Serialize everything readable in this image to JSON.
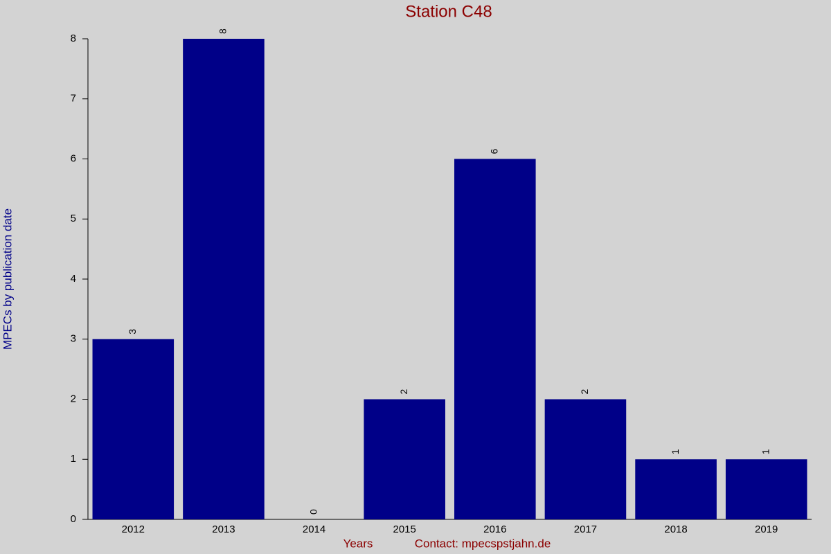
{
  "chart_data": {
    "type": "bar",
    "title": "Station C48",
    "y_label": "MPECs by publication date",
    "x_label": "Years",
    "annotation": "Contact: mpecspstjahn.de",
    "categories": [
      "2012",
      "2013",
      "2014",
      "2015",
      "2016",
      "2017",
      "2018",
      "2019"
    ],
    "values": [
      3,
      8,
      0,
      2,
      6,
      2,
      1,
      1
    ],
    "color": "#000088",
    "ylim": [
      0,
      8
    ],
    "yticks": [
      0,
      1,
      2,
      3,
      4,
      5,
      6,
      7,
      8
    ],
    "grid": false
  }
}
